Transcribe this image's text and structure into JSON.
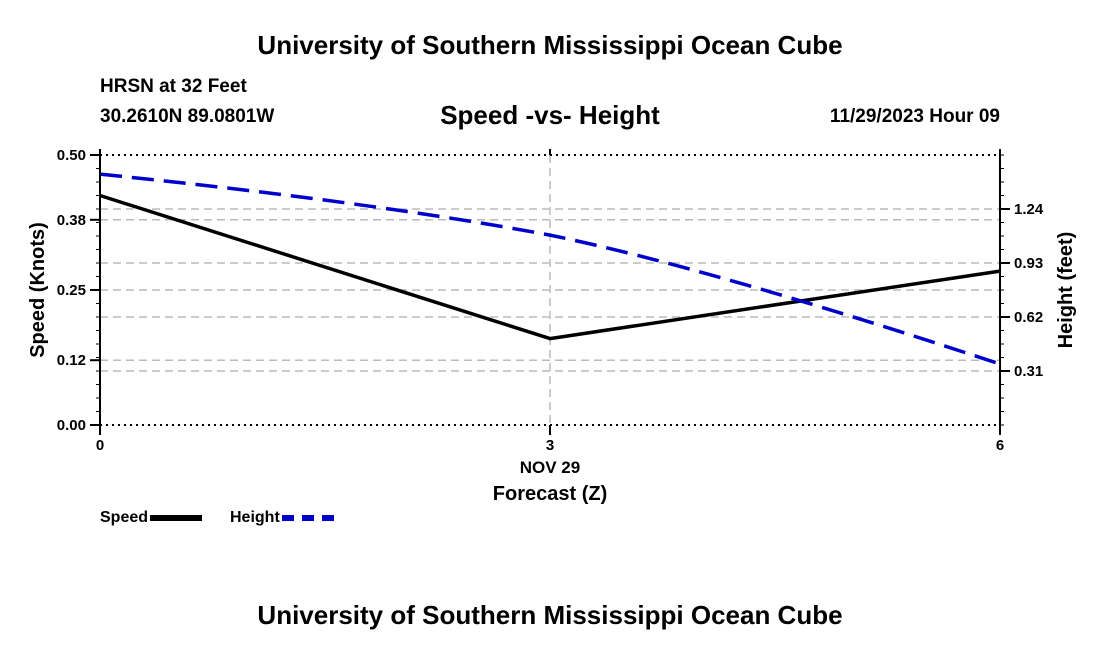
{
  "header": {
    "title": "University of Southern Mississippi Ocean Cube",
    "station": "HRSN at 32 Feet",
    "coords": "30.2610N  89.0801W",
    "run_time": "11/29/2023 Hour 09"
  },
  "footer": {
    "title": "University of Southern Mississippi Ocean Cube"
  },
  "legend": {
    "speed_label": "Speed",
    "height_label": "Height"
  },
  "colors": {
    "speed": "#000000",
    "height": "#0000cc",
    "grid": "#bbbbbb"
  },
  "chart_data": {
    "type": "line",
    "title": "Speed -vs- Height",
    "xlabel": "Forecast (Z)",
    "x_date_label": "NOV 29",
    "ylabel": "Speed (Knots)",
    "y2label": "Height (feet)",
    "x": [
      0,
      3,
      6
    ],
    "x_tick_labels": [
      "0",
      "3",
      "6"
    ],
    "xlim": [
      0,
      6
    ],
    "ylim": [
      0,
      0.5
    ],
    "y_ticks": [
      0.0,
      0.12,
      0.25,
      0.38,
      0.5
    ],
    "y_tick_labels": [
      "0.00",
      "0.12",
      "0.25",
      "0.38",
      "0.50"
    ],
    "y2lim": [
      0.0,
      1.55
    ],
    "y2_ticks": [
      0.31,
      0.62,
      0.93,
      1.24
    ],
    "y2_tick_labels": [
      "0.31",
      "0.62",
      "0.93",
      "1.24"
    ],
    "grid": true,
    "series": [
      {
        "name": "Speed",
        "axis": "left",
        "style": "solid",
        "values": [
          0.425,
          0.16,
          0.285
        ]
      },
      {
        "name": "Height",
        "axis": "right",
        "style": "dashed",
        "values": [
          1.44,
          1.09,
          0.35
        ]
      }
    ]
  }
}
